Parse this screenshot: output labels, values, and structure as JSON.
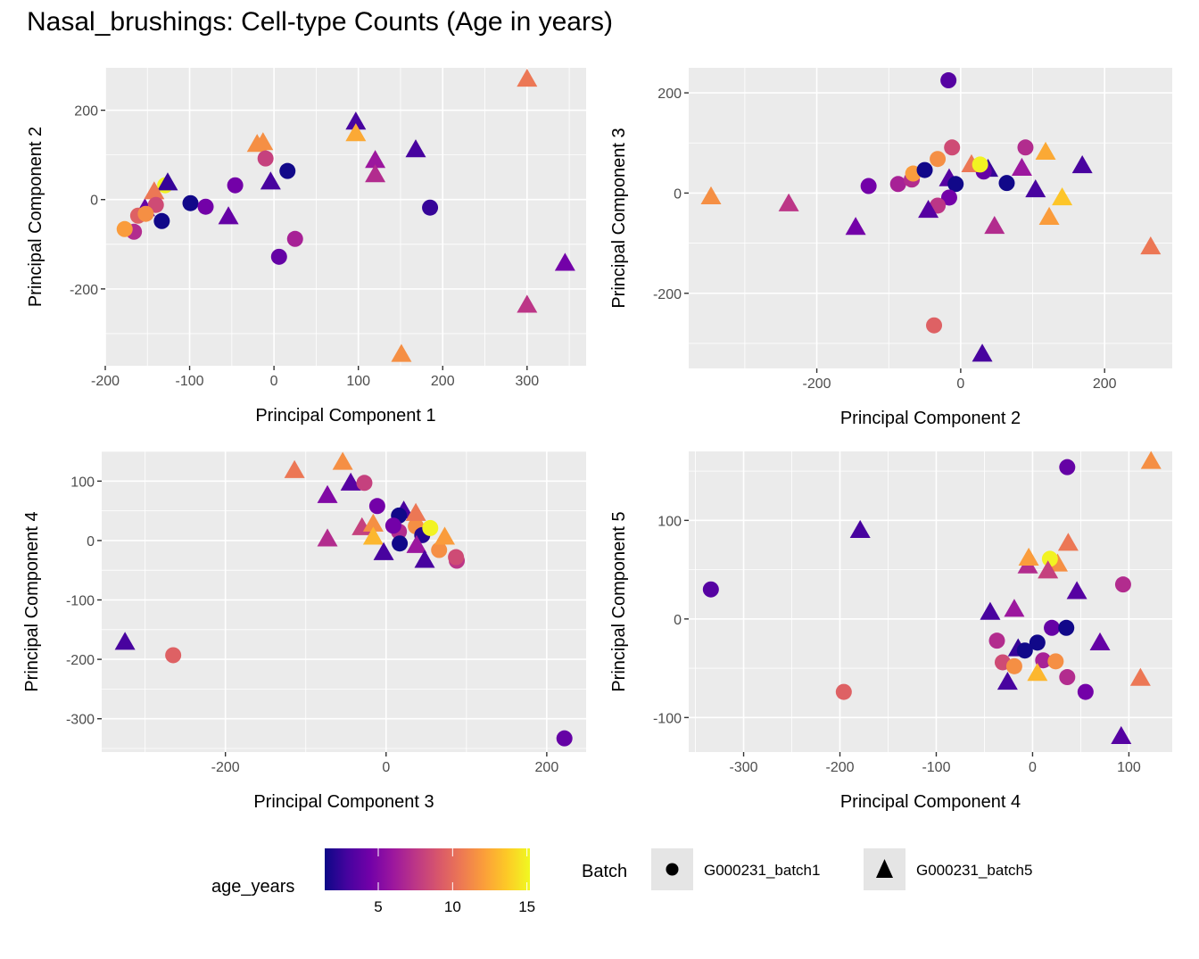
{
  "title": "Nasal_brushings: Cell-type Counts (Age in years)",
  "legend": {
    "color_title": "age_years",
    "color_ticks": [
      5,
      10,
      15
    ],
    "color_range": [
      1.4,
      15.2
    ],
    "colormap": "plasma",
    "colormap_stops": [
      "#0d0887",
      "#46039f",
      "#7201a8",
      "#9c179e",
      "#bd3786",
      "#d8576b",
      "#ed7953",
      "#fb9f3a",
      "#fdca26",
      "#f0f921"
    ],
    "shape_title": "Batch",
    "shape_entries": [
      {
        "label": "G000231_batch1",
        "shape": "circle"
      },
      {
        "label": "G000231_batch5",
        "shape": "triangle"
      }
    ]
  },
  "chart_data": [
    {
      "type": "scatter",
      "xlabel": "Principal Component 1",
      "ylabel": "Principal Component 2",
      "xlim": [
        -200,
        370
      ],
      "ylim": [
        -372,
        295
      ],
      "xticks": [
        -200,
        -100,
        0,
        100,
        200,
        300
      ],
      "yticks": [
        -200,
        0,
        200
      ],
      "grid": true,
      "points": [
        {
          "x": 300,
          "y": 270,
          "age": 10.5,
          "batch": "G000231_batch5"
        },
        {
          "x": 97,
          "y": 174,
          "age": 3,
          "batch": "G000231_batch5"
        },
        {
          "x": 97,
          "y": 148,
          "age": 12.5,
          "batch": "G000231_batch5"
        },
        {
          "x": -20,
          "y": 124,
          "age": 11.5,
          "batch": "G000231_batch5"
        },
        {
          "x": -13,
          "y": 128,
          "age": 11.5,
          "batch": "G000231_batch5"
        },
        {
          "x": 168,
          "y": 112,
          "age": 3,
          "batch": "G000231_batch5"
        },
        {
          "x": 120,
          "y": 88,
          "age": 6,
          "batch": "G000231_batch5"
        },
        {
          "x": 120,
          "y": 56,
          "age": 7,
          "batch": "G000231_batch5"
        },
        {
          "x": -10,
          "y": 92,
          "age": 8,
          "batch": "G000231_batch1"
        },
        {
          "x": 16,
          "y": 64,
          "age": 1.5,
          "batch": "G000231_batch1"
        },
        {
          "x": -4,
          "y": 40,
          "age": 3,
          "batch": "G000231_batch5"
        },
        {
          "x": -46,
          "y": 32,
          "age": 4.5,
          "batch": "G000231_batch1"
        },
        {
          "x": -99,
          "y": -8,
          "age": 1.5,
          "batch": "G000231_batch1"
        },
        {
          "x": -81,
          "y": -16,
          "age": 4.5,
          "batch": "G000231_batch1"
        },
        {
          "x": -54,
          "y": -38,
          "age": 4,
          "batch": "G000231_batch5"
        },
        {
          "x": 185,
          "y": -18,
          "age": 2.5,
          "batch": "G000231_batch1"
        },
        {
          "x": 25,
          "y": -88,
          "age": 6.5,
          "batch": "G000231_batch1"
        },
        {
          "x": 6,
          "y": -128,
          "age": 4,
          "batch": "G000231_batch1"
        },
        {
          "x": 345,
          "y": -142,
          "age": 4.5,
          "batch": "G000231_batch5"
        },
        {
          "x": 300,
          "y": -236,
          "age": 7.5,
          "batch": "G000231_batch5"
        },
        {
          "x": 151,
          "y": -346,
          "age": 11.5,
          "batch": "G000231_batch5"
        },
        {
          "x": -129,
          "y": 32,
          "age": 15,
          "batch": "G000231_batch1"
        },
        {
          "x": -126,
          "y": 38,
          "age": 2.5,
          "batch": "G000231_batch5"
        },
        {
          "x": -153,
          "y": -20,
          "age": 4,
          "batch": "G000231_batch5"
        },
        {
          "x": -142,
          "y": 18,
          "age": 10.5,
          "batch": "G000231_batch5"
        },
        {
          "x": -140,
          "y": -12,
          "age": 8.5,
          "batch": "G000231_batch1"
        },
        {
          "x": -161,
          "y": -36,
          "age": 9.5,
          "batch": "G000231_batch1"
        },
        {
          "x": -152,
          "y": -32,
          "age": 11.5,
          "batch": "G000231_batch1"
        },
        {
          "x": -133,
          "y": -48,
          "age": 1.5,
          "batch": "G000231_batch1"
        },
        {
          "x": -166,
          "y": -72,
          "age": 7,
          "batch": "G000231_batch1"
        },
        {
          "x": -177,
          "y": -66,
          "age": 12,
          "batch": "G000231_batch1"
        }
      ]
    },
    {
      "type": "scatter",
      "xlabel": "Principal Component 2",
      "ylabel": "Principal Component 3",
      "xlim": [
        -378,
        294
      ],
      "ylim": [
        -350,
        250
      ],
      "xticks": [
        -200,
        0,
        200
      ],
      "yticks": [
        -200,
        0,
        200
      ],
      "grid": true,
      "points": [
        {
          "x": -17,
          "y": 225,
          "age": 3.5,
          "batch": "G000231_batch1"
        },
        {
          "x": -347,
          "y": -7,
          "age": 11.5,
          "batch": "G000231_batch5"
        },
        {
          "x": -239,
          "y": -21,
          "age": 7.5,
          "batch": "G000231_batch5"
        },
        {
          "x": -146,
          "y": -68,
          "age": 4.5,
          "batch": "G000231_batch5"
        },
        {
          "x": -128,
          "y": 14,
          "age": 4.5,
          "batch": "G000231_batch1"
        },
        {
          "x": -87,
          "y": 18,
          "age": 6.5,
          "batch": "G000231_batch1"
        },
        {
          "x": -68,
          "y": 27,
          "age": 7,
          "batch": "G000231_batch1"
        },
        {
          "x": -66,
          "y": 39,
          "age": 12,
          "batch": "G000231_batch1"
        },
        {
          "x": -50,
          "y": 46,
          "age": 1.5,
          "batch": "G000231_batch1"
        },
        {
          "x": -32,
          "y": 68,
          "age": 11.5,
          "batch": "G000231_batch1"
        },
        {
          "x": -12,
          "y": 91,
          "age": 8.5,
          "batch": "G000231_batch1"
        },
        {
          "x": -16,
          "y": 29,
          "age": 3.5,
          "batch": "G000231_batch5"
        },
        {
          "x": -7,
          "y": 18,
          "age": 1.5,
          "batch": "G000231_batch1"
        },
        {
          "x": -16,
          "y": -9,
          "age": 4.5,
          "batch": "G000231_batch1"
        },
        {
          "x": -32,
          "y": -25,
          "age": 7.5,
          "batch": "G000231_batch1"
        },
        {
          "x": -45,
          "y": -34,
          "age": 3.5,
          "batch": "G000231_batch5"
        },
        {
          "x": 38,
          "y": 48,
          "age": 2.5,
          "batch": "G000231_batch5"
        },
        {
          "x": 32,
          "y": 43,
          "age": 4,
          "batch": "G000231_batch1"
        },
        {
          "x": 15,
          "y": 57,
          "age": 10.5,
          "batch": "G000231_batch5"
        },
        {
          "x": 27,
          "y": 57,
          "age": 15,
          "batch": "G000231_batch1"
        },
        {
          "x": 64,
          "y": 20,
          "age": 1.5,
          "batch": "G000231_batch1"
        },
        {
          "x": 85,
          "y": 50,
          "age": 6,
          "batch": "G000231_batch5"
        },
        {
          "x": 90,
          "y": 91,
          "age": 7,
          "batch": "G000231_batch1"
        },
        {
          "x": 118,
          "y": 82,
          "age": 12.5,
          "batch": "G000231_batch5"
        },
        {
          "x": 104,
          "y": 7,
          "age": 3,
          "batch": "G000231_batch5"
        },
        {
          "x": 141,
          "y": -9,
          "age": 13.5,
          "batch": "G000231_batch5"
        },
        {
          "x": 123,
          "y": -48,
          "age": 12,
          "batch": "G000231_batch5"
        },
        {
          "x": 47,
          "y": -66,
          "age": 7,
          "batch": "G000231_batch5"
        },
        {
          "x": 169,
          "y": 55,
          "age": 3,
          "batch": "G000231_batch5"
        },
        {
          "x": 264,
          "y": -107,
          "age": 10.5,
          "batch": "G000231_batch5"
        },
        {
          "x": -37,
          "y": -264,
          "age": 9.5,
          "batch": "G000231_batch1"
        },
        {
          "x": 30,
          "y": -321,
          "age": 3,
          "batch": "G000231_batch5"
        }
      ]
    },
    {
      "type": "scatter",
      "xlabel": "Principal Component 3",
      "ylabel": "Principal Component 4",
      "xlim": [
        -354,
        249
      ],
      "ylim": [
        -356,
        150
      ],
      "xticks": [
        -200,
        0,
        200
      ],
      "yticks": [
        -300,
        -200,
        -100,
        0,
        100
      ],
      "grid": true,
      "points": [
        {
          "x": -114,
          "y": 118,
          "age": 10.5,
          "batch": "G000231_batch5"
        },
        {
          "x": -54,
          "y": 132,
          "age": 11.5,
          "batch": "G000231_batch5"
        },
        {
          "x": -44,
          "y": 97,
          "age": 3.5,
          "batch": "G000231_batch5"
        },
        {
          "x": -27,
          "y": 97,
          "age": 8,
          "batch": "G000231_batch1"
        },
        {
          "x": -73,
          "y": 76,
          "age": 5,
          "batch": "G000231_batch5"
        },
        {
          "x": -11,
          "y": 58,
          "age": 4.5,
          "batch": "G000231_batch1"
        },
        {
          "x": -73,
          "y": 3,
          "age": 7,
          "batch": "G000231_batch5"
        },
        {
          "x": -30,
          "y": 22,
          "age": 8,
          "batch": "G000231_batch5"
        },
        {
          "x": -16,
          "y": 28,
          "age": 11.5,
          "batch": "G000231_batch5"
        },
        {
          "x": -16,
          "y": 6,
          "age": 13,
          "batch": "G000231_batch5"
        },
        {
          "x": -3,
          "y": -20,
          "age": 3,
          "batch": "G000231_batch5"
        },
        {
          "x": 22,
          "y": 50,
          "age": 3,
          "batch": "G000231_batch5"
        },
        {
          "x": 16,
          "y": 42,
          "age": 1.5,
          "batch": "G000231_batch1"
        },
        {
          "x": 16,
          "y": 15,
          "age": 7,
          "batch": "G000231_batch1"
        },
        {
          "x": 9,
          "y": 25,
          "age": 4.5,
          "batch": "G000231_batch1"
        },
        {
          "x": 17,
          "y": -5,
          "age": 1.5,
          "batch": "G000231_batch1"
        },
        {
          "x": 37,
          "y": 24,
          "age": 11.5,
          "batch": "G000231_batch1"
        },
        {
          "x": 37,
          "y": 46,
          "age": 10.5,
          "batch": "G000231_batch5"
        },
        {
          "x": 45,
          "y": 9,
          "age": 2,
          "batch": "G000231_batch1"
        },
        {
          "x": 55,
          "y": 21,
          "age": 15,
          "batch": "G000231_batch1"
        },
        {
          "x": 38,
          "y": -8,
          "age": 6,
          "batch": "G000231_batch5"
        },
        {
          "x": 48,
          "y": -33,
          "age": 3,
          "batch": "G000231_batch5"
        },
        {
          "x": 66,
          "y": -16,
          "age": 11.5,
          "batch": "G000231_batch1"
        },
        {
          "x": 73,
          "y": 6,
          "age": 12,
          "batch": "G000231_batch5"
        },
        {
          "x": 88,
          "y": -34,
          "age": 7.5,
          "batch": "G000231_batch1"
        },
        {
          "x": 87,
          "y": -28,
          "age": 8.5,
          "batch": "G000231_batch1"
        },
        {
          "x": -325,
          "y": -171,
          "age": 3,
          "batch": "G000231_batch5"
        },
        {
          "x": -265,
          "y": -193,
          "age": 9.5,
          "batch": "G000231_batch1"
        },
        {
          "x": 222,
          "y": -333,
          "age": 4,
          "batch": "G000231_batch1"
        }
      ]
    },
    {
      "type": "scatter",
      "xlabel": "Principal Component 4",
      "ylabel": "Principal Component 5",
      "xlim": [
        -357,
        145
      ],
      "ylim": [
        -135,
        170
      ],
      "xticks": [
        -300,
        -200,
        -100,
        0,
        100
      ],
      "yticks": [
        -100,
        0,
        100
      ],
      "grid": true,
      "points": [
        {
          "x": 36,
          "y": 154,
          "age": 4,
          "batch": "G000231_batch1"
        },
        {
          "x": 123,
          "y": 160,
          "age": 11.5,
          "batch": "G000231_batch5"
        },
        {
          "x": -179,
          "y": 90,
          "age": 3,
          "batch": "G000231_batch5"
        },
        {
          "x": 37,
          "y": 77,
          "age": 10.5,
          "batch": "G000231_batch5"
        },
        {
          "x": -5,
          "y": 54,
          "age": 7,
          "batch": "G000231_batch5"
        },
        {
          "x": -4,
          "y": 62,
          "age": 12,
          "batch": "G000231_batch5"
        },
        {
          "x": 26,
          "y": 56,
          "age": 11.5,
          "batch": "G000231_batch5"
        },
        {
          "x": 18,
          "y": 61,
          "age": 15,
          "batch": "G000231_batch1"
        },
        {
          "x": 16,
          "y": 49,
          "age": 8,
          "batch": "G000231_batch5"
        },
        {
          "x": -334,
          "y": 30,
          "age": 3.5,
          "batch": "G000231_batch1"
        },
        {
          "x": 94,
          "y": 35,
          "age": 7,
          "batch": "G000231_batch1"
        },
        {
          "x": 46,
          "y": 28,
          "age": 3.5,
          "batch": "G000231_batch5"
        },
        {
          "x": -44,
          "y": 7,
          "age": 3,
          "batch": "G000231_batch5"
        },
        {
          "x": -19,
          "y": 10,
          "age": 6,
          "batch": "G000231_batch5"
        },
        {
          "x": 20,
          "y": -9,
          "age": 4,
          "batch": "G000231_batch1"
        },
        {
          "x": 35,
          "y": -9,
          "age": 1.5,
          "batch": "G000231_batch1"
        },
        {
          "x": -37,
          "y": -22,
          "age": 7,
          "batch": "G000231_batch1"
        },
        {
          "x": 70,
          "y": -24,
          "age": 4,
          "batch": "G000231_batch5"
        },
        {
          "x": -15,
          "y": -30,
          "age": 2.5,
          "batch": "G000231_batch5"
        },
        {
          "x": -8,
          "y": -32,
          "age": 1.5,
          "batch": "G000231_batch1"
        },
        {
          "x": 5,
          "y": -24,
          "age": 1.5,
          "batch": "G000231_batch1"
        },
        {
          "x": -31,
          "y": -44,
          "age": 8.5,
          "batch": "G000231_batch1"
        },
        {
          "x": -19,
          "y": -48,
          "age": 11.5,
          "batch": "G000231_batch1"
        },
        {
          "x": 11,
          "y": -42,
          "age": 6.5,
          "batch": "G000231_batch1"
        },
        {
          "x": 24,
          "y": -43,
          "age": 11.5,
          "batch": "G000231_batch1"
        },
        {
          "x": 5,
          "y": -55,
          "age": 13,
          "batch": "G000231_batch5"
        },
        {
          "x": 112,
          "y": -60,
          "age": 10.5,
          "batch": "G000231_batch5"
        },
        {
          "x": 36,
          "y": -59,
          "age": 7,
          "batch": "G000231_batch1"
        },
        {
          "x": -26,
          "y": -64,
          "age": 3,
          "batch": "G000231_batch5"
        },
        {
          "x": 55,
          "y": -74,
          "age": 4.5,
          "batch": "G000231_batch1"
        },
        {
          "x": -196,
          "y": -74,
          "age": 9.5,
          "batch": "G000231_batch1"
        },
        {
          "x": 92,
          "y": -119,
          "age": 3.5,
          "batch": "G000231_batch5"
        }
      ]
    }
  ]
}
